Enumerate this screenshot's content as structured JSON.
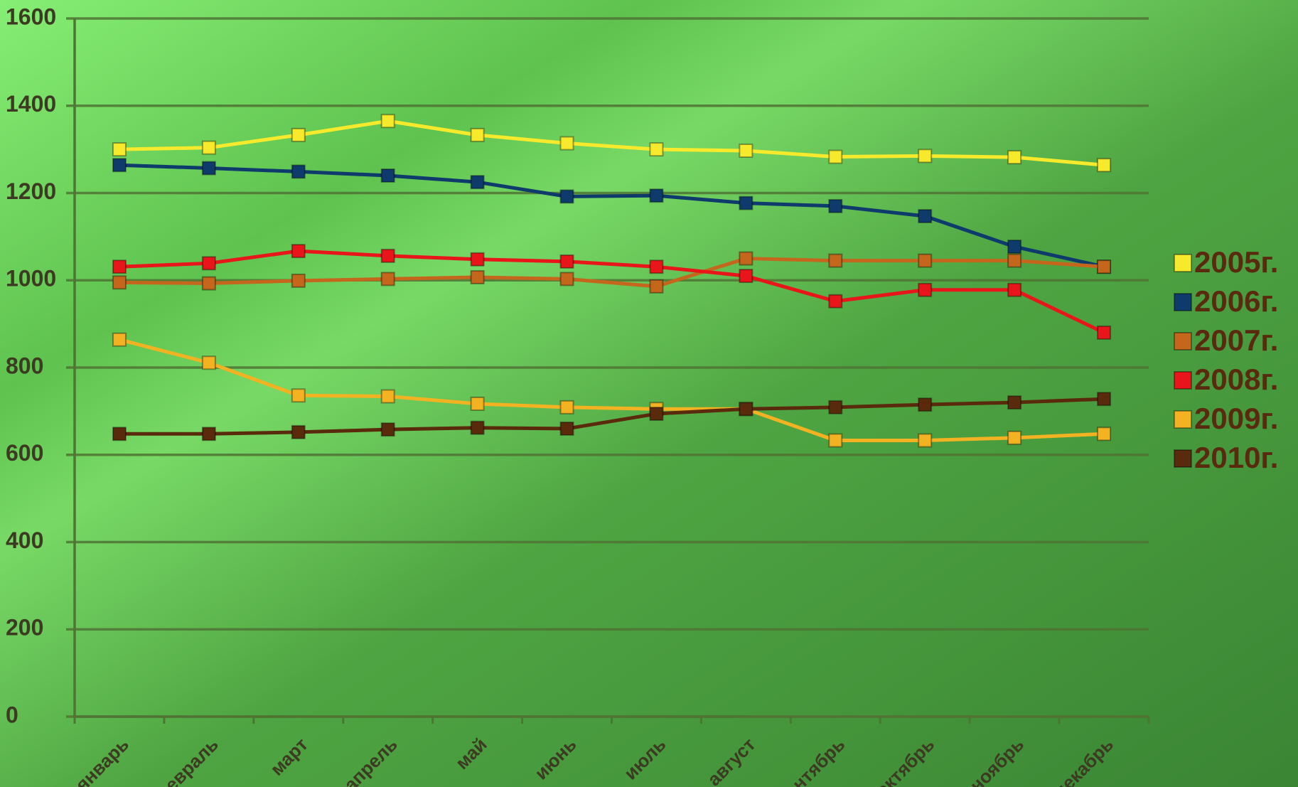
{
  "chart_data": {
    "type": "line",
    "categories": [
      "январь",
      "февраль",
      "март",
      "апрель",
      "май",
      "июнь",
      "июль",
      "август",
      "сентябрь",
      "октябрь",
      "ноябрь",
      "декабрь"
    ],
    "series": [
      {
        "name": "2005г.",
        "color": "#f7ea2c",
        "values": [
          1300,
          1304,
          1333,
          1365,
          1333,
          1314,
          1300,
          1297,
          1283,
          1285,
          1282,
          1264
        ]
      },
      {
        "name": "2006г.",
        "color": "#0e3a6c",
        "values": [
          1264,
          1257,
          1249,
          1240,
          1225,
          1192,
          1194,
          1177,
          1170,
          1147,
          1077,
          1031
        ]
      },
      {
        "name": "2007г.",
        "color": "#c4671c",
        "values": [
          995,
          993,
          999,
          1003,
          1007,
          1003,
          986,
          1050,
          1045,
          1045,
          1045,
          1031
        ]
      },
      {
        "name": "2008г.",
        "color": "#e8161a",
        "values": [
          1031,
          1039,
          1067,
          1056,
          1048,
          1043,
          1031,
          1010,
          952,
          978,
          978,
          880
        ]
      },
      {
        "name": "2009г.",
        "color": "#f2b222",
        "values": [
          864,
          811,
          736,
          734,
          717,
          709,
          705,
          705,
          633,
          633,
          639,
          648
        ]
      },
      {
        "name": "2010г.",
        "color": "#5a2a0c",
        "values": [
          648,
          648,
          652,
          658,
          662,
          660,
          694,
          705,
          709,
          715,
          720,
          728
        ]
      }
    ],
    "ylim": [
      0,
      1600
    ],
    "yticks": [
      0,
      200,
      400,
      600,
      800,
      1000,
      1200,
      1400,
      1600
    ],
    "grid": true,
    "legend": "right"
  }
}
